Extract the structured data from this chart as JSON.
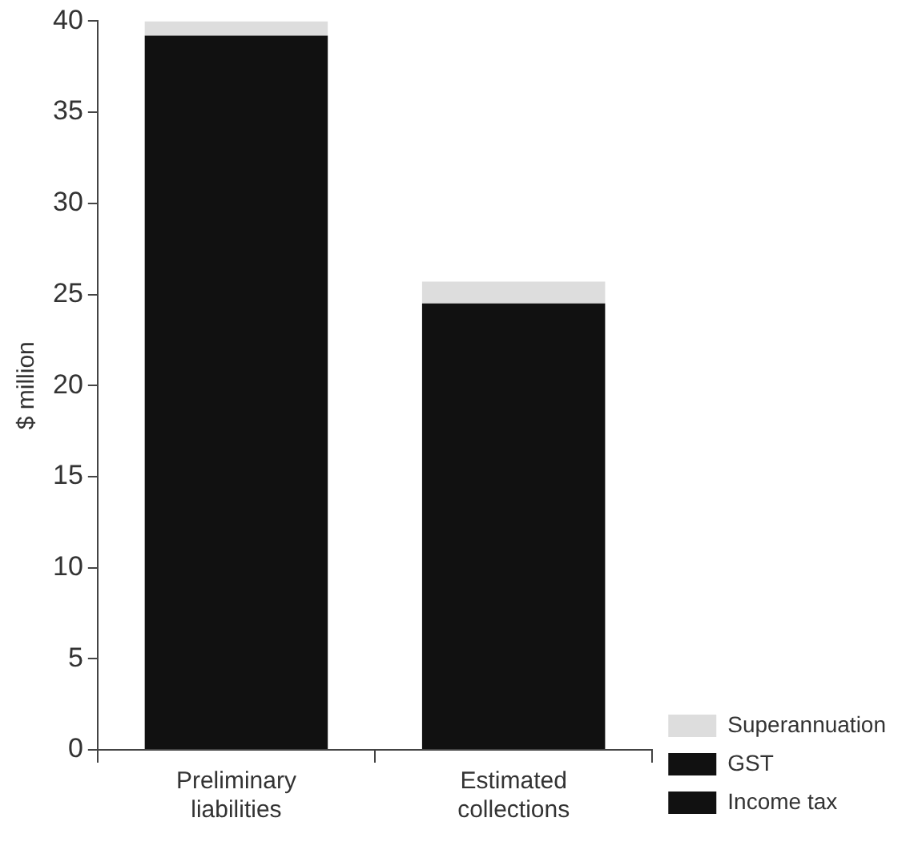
{
  "chart_data": {
    "type": "bar",
    "ylabel": "$ million",
    "categories": [
      "Preliminary liabilities",
      "Estimated collections"
    ],
    "stacked": true,
    "series": [
      {
        "name": "Income tax",
        "color": "#111111",
        "values": [
          39.2,
          24.5
        ]
      },
      {
        "name": "GST",
        "color": "#111111",
        "values": [
          null,
          null
        ]
      },
      {
        "name": "Superannuation",
        "color": "#dddddd",
        "values": [
          0.8,
          1.2
        ]
      }
    ],
    "ylim": [
      0,
      40
    ],
    "yticks": [
      0,
      5,
      10,
      15,
      20,
      25,
      30,
      35,
      40
    ],
    "grid": false,
    "legend": "bottom right"
  }
}
